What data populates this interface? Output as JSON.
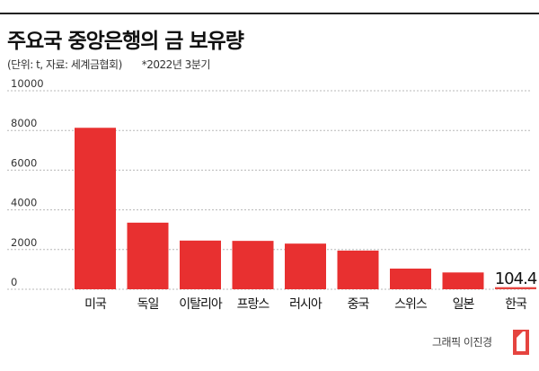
{
  "header": {
    "title": "주요국 중앙은행의 금 보유량",
    "unit_note": "(단위: t, 자료: 세계금협회)",
    "date_note": "*2022년 3분기"
  },
  "credit": "그래픽 이진경",
  "chart_data": {
    "type": "bar",
    "categories": [
      "미국",
      "독일",
      "이탈리아",
      "프랑스",
      "러시아",
      "중국",
      "스위스",
      "일본",
      "한국"
    ],
    "values": [
      8133,
      3355,
      2452,
      2437,
      2299,
      1948,
      1040,
      846,
      104.4
    ],
    "value_label": "104.4",
    "yticks": [
      0,
      2000,
      4000,
      6000,
      8000,
      10000
    ],
    "ylim": [
      0,
      10000
    ],
    "grid": true,
    "bar_color": "#e83030",
    "highlight_color": "#e5443f"
  }
}
